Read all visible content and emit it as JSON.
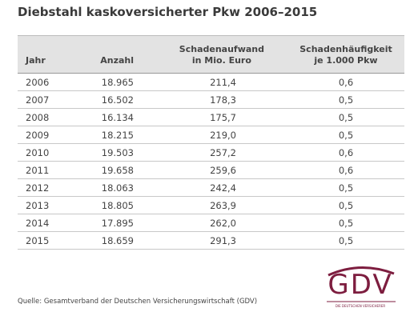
{
  "header": {
    "title": "Diebstahl kaskoversicherter Pkw 2006–2015"
  },
  "table": {
    "columns": [
      [
        "Jahr"
      ],
      [
        "Anzahl"
      ],
      [
        "Schadenaufwand",
        "in Mio. Euro"
      ],
      [
        "Schadenhäufigkeit",
        "je 1.000 Pkw"
      ]
    ],
    "rows": [
      [
        "2006",
        "18.965",
        "211,4",
        "0,6"
      ],
      [
        "2007",
        "16.502",
        "178,3",
        "0,5"
      ],
      [
        "2008",
        "16.134",
        "175,7",
        "0,5"
      ],
      [
        "2009",
        "18.215",
        "219,0",
        "0,5"
      ],
      [
        "2010",
        "19.503",
        "257,2",
        "0,6"
      ],
      [
        "2011",
        "19.658",
        "259,6",
        "0,6"
      ],
      [
        "2012",
        "18.063",
        "242,4",
        "0,5"
      ],
      [
        "2013",
        "18.805",
        "263,9",
        "0,5"
      ],
      [
        "2014",
        "17.895",
        "262,0",
        "0,5"
      ],
      [
        "2015",
        "18.659",
        "291,3",
        "0,5"
      ]
    ]
  },
  "footer": {
    "source": "Quelle: Gesamtverband der Deutschen Versicherungswirtschaft (GDV)"
  },
  "logo": {
    "text": "GDV",
    "tagline": "DIE DEUTSCHEN VERSICHERER"
  }
}
